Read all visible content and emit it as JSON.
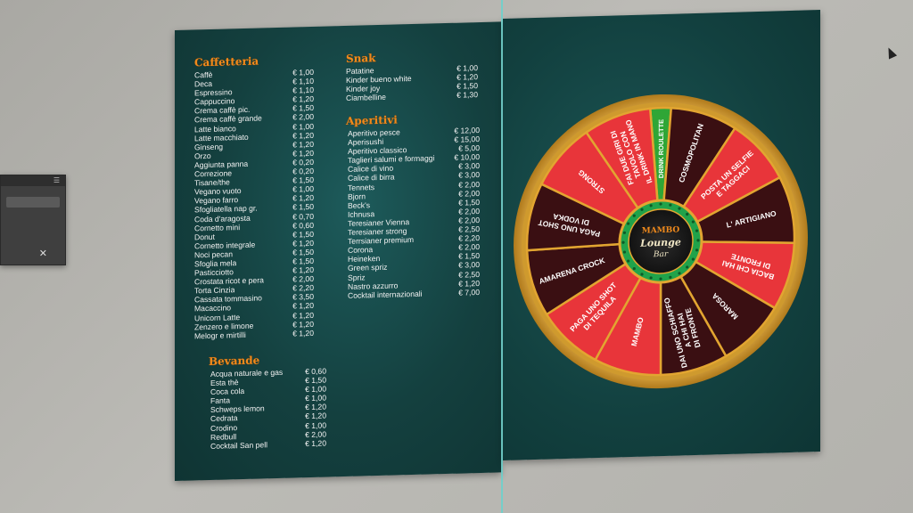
{
  "caffetteria": {
    "title": "Caffetteria",
    "items": [
      {
        "name": "Caffè",
        "price": "€ 1,00"
      },
      {
        "name": "Deca",
        "price": "€ 1,10"
      },
      {
        "name": "Espressino",
        "price": "€ 1,10"
      },
      {
        "name": "Cappuccino",
        "price": "€ 1,20"
      },
      {
        "name": "Crema caffè pic.",
        "price": "€ 1,50"
      },
      {
        "name": "Crema caffè grande",
        "price": "€ 2,00"
      },
      {
        "name": "Latte bianco",
        "price": "€ 1,00"
      },
      {
        "name": "Latte macchiato",
        "price": "€ 1,20"
      },
      {
        "name": "Ginseng",
        "price": "€ 1,20"
      },
      {
        "name": "Orzo",
        "price": "€ 1,20"
      },
      {
        "name": "Aggiunta panna",
        "price": "€ 0,20"
      },
      {
        "name": "Correzione",
        "price": "€ 0,20"
      },
      {
        "name": "Tisane/the",
        "price": "€ 1,50"
      },
      {
        "name": "Vegano vuoto",
        "price": "€ 1,00"
      },
      {
        "name": "Vegano farro",
        "price": "€ 1,20"
      },
      {
        "name": "Sfogliatella nap gr.",
        "price": "€ 1,50"
      },
      {
        "name": "Coda d'aragosta",
        "price": "€ 0,70"
      },
      {
        "name": "Cornetto mini",
        "price": "€ 0,60"
      },
      {
        "name": "Donut",
        "price": "€ 1,50"
      },
      {
        "name": "Cornetto integrale",
        "price": "€ 1,20"
      },
      {
        "name": "Noci pecan",
        "price": "€ 1,50"
      },
      {
        "name": "Sfoglia mela",
        "price": "€ 1,50"
      },
      {
        "name": "Pasticciotto",
        "price": "€ 1,20"
      },
      {
        "name": "Crostata ricot e pera",
        "price": "€ 2,00"
      },
      {
        "name": "Torta Cinzia",
        "price": "€ 2,20"
      },
      {
        "name": "Cassata tommasino",
        "price": "€ 3,50"
      },
      {
        "name": "Macaccino",
        "price": "€ 1,20"
      },
      {
        "name": "Unicorn Latte",
        "price": "€ 1,20"
      },
      {
        "name": "Zenzero e limone",
        "price": "€ 1,20"
      },
      {
        "name": "Melogr e mirtilli",
        "price": "€ 1,20"
      }
    ]
  },
  "bevande": {
    "title": "Bevande",
    "items": [
      {
        "name": "Acqua naturale e gas",
        "price": "€ 0,60"
      },
      {
        "name": "Esta thè",
        "price": "€ 1,50"
      },
      {
        "name": "Coca cola",
        "price": "€ 1,00"
      },
      {
        "name": "Fanta",
        "price": "€ 1,00"
      },
      {
        "name": "Schweps lemon",
        "price": "€ 1,20"
      },
      {
        "name": "Cedrata",
        "price": "€ 1,20"
      },
      {
        "name": "Crodino",
        "price": "€ 1,00"
      },
      {
        "name": "Redbull",
        "price": "€ 2,00"
      },
      {
        "name": "Cocktail San pell",
        "price": "€ 1,20"
      }
    ]
  },
  "snak": {
    "title": "Snak",
    "items": [
      {
        "name": "Patatine",
        "price": "€ 1,00"
      },
      {
        "name": "Kinder bueno white",
        "price": "€ 1,20"
      },
      {
        "name": "Kinder joy",
        "price": "€ 1,50"
      },
      {
        "name": "Ciambelline",
        "price": "€ 1,30"
      }
    ]
  },
  "aperitivi": {
    "title": "Aperitivi",
    "items": [
      {
        "name": "Aperitivo pesce",
        "price": "€ 12,00"
      },
      {
        "name": "Aperisushi",
        "price": "€ 15,00"
      },
      {
        "name": "Aperitivo classico",
        "price": "€ 5,00"
      },
      {
        "name": "Taglieri salumi e formaggi",
        "price": "€ 10,00"
      },
      {
        "name": "Calice di vino",
        "price": "€ 3,00"
      },
      {
        "name": "Calice di birra",
        "price": "€ 3,00"
      },
      {
        "name": "Tennets",
        "price": "€ 2,00"
      },
      {
        "name": "Bjorn",
        "price": "€ 2,00"
      },
      {
        "name": "Beck's",
        "price": "€ 1,50"
      },
      {
        "name": "Ichnusa",
        "price": "€ 2,00"
      },
      {
        "name": "Teresianer Vienna",
        "price": "€ 2,00"
      },
      {
        "name": "Teresianer strong",
        "price": "€ 2,50"
      },
      {
        "name": "Terrsianer premium",
        "price": "€ 2,20"
      },
      {
        "name": "Corona",
        "price": "€ 2,00"
      },
      {
        "name": "Heineken",
        "price": "€ 1,50"
      },
      {
        "name": "Green spriz",
        "price": "€ 3,00"
      },
      {
        "name": "Spriz",
        "price": "€ 2,50"
      },
      {
        "name": "Nastro azzurro",
        "price": "€ 1,20"
      },
      {
        "name": "Cocktail internazionali",
        "price": "€ 7,00"
      }
    ]
  },
  "wheel": {
    "segments": [
      {
        "lines": [
          "DRINK ROULETTE"
        ],
        "color": "#2fa636"
      },
      {
        "lines": [
          "COSMOPOLITAN"
        ],
        "color": "#3a0f12"
      },
      {
        "lines": [
          "POSTA UN SELFIE",
          "E TAGGACI"
        ],
        "color": "#e8353a"
      },
      {
        "lines": [
          "L' ARTIGIANO"
        ],
        "color": "#3a0f12"
      },
      {
        "lines": [
          "BACIA CHI HAI",
          "DI FRONTE"
        ],
        "color": "#e8353a"
      },
      {
        "lines": [
          "MAROSA"
        ],
        "color": "#3a0f12"
      },
      {
        "lines": [
          "DAI UNO SCHIAFFO",
          "A CHI HAI",
          "DI FRONTE"
        ],
        "color": "#3a0f12"
      },
      {
        "lines": [
          "MAMBO"
        ],
        "color": "#e8353a"
      },
      {
        "lines": [
          "PAGA UNO SHOT",
          "DI TEQUILA"
        ],
        "color": "#e8353a"
      },
      {
        "lines": [
          "AMARENA CROCK"
        ],
        "color": "#3a0f12"
      },
      {
        "lines": [
          "PAGA UNO SHOT",
          "DI VODKA"
        ],
        "color": "#3a0f12"
      },
      {
        "lines": [
          "STRONG"
        ],
        "color": "#e8353a"
      },
      {
        "lines": [
          "FAI DUE GIRI DI",
          "TAVOLO CON",
          "IL DRINK IN MANO"
        ],
        "color": "#e8353a"
      }
    ],
    "logo": {
      "top": "MAMBO",
      "middle": "Lounge",
      "bottom": "Bar"
    }
  },
  "colors": {
    "accent": "#f08a1c",
    "panel": "#14403f",
    "wheel_gold": "#e2a531"
  }
}
